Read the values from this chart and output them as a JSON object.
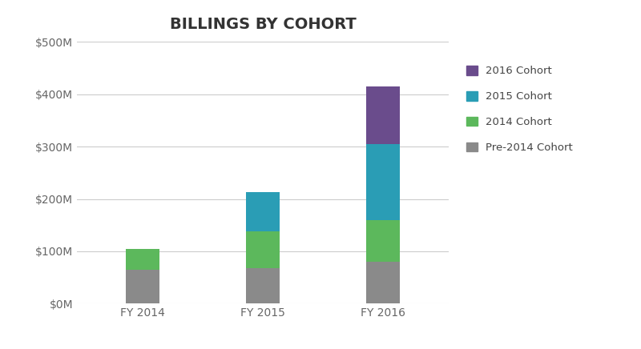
{
  "title": "BILLINGS BY COHORT",
  "categories": [
    "FY 2014",
    "FY 2015",
    "FY 2016"
  ],
  "series": {
    "Pre-2014 Cohort": [
      65,
      68,
      80
    ],
    "2014 Cohort": [
      40,
      70,
      80
    ],
    "2015 Cohort": [
      0,
      75,
      145
    ],
    "2016 Cohort": [
      0,
      0,
      110
    ]
  },
  "colors": {
    "Pre-2014 Cohort": "#8a8a8a",
    "2014 Cohort": "#5cb85c",
    "2015 Cohort": "#2a9db5",
    "2016 Cohort": "#6a4c8c"
  },
  "ylim": [
    0,
    500
  ],
  "yticks": [
    0,
    100,
    200,
    300,
    400,
    500
  ],
  "ytick_labels": [
    "$0M",
    "$100M",
    "$200M",
    "$300M",
    "$400M",
    "$500M"
  ],
  "background_color": "#ffffff",
  "title_fontsize": 14,
  "bar_width": 0.28
}
